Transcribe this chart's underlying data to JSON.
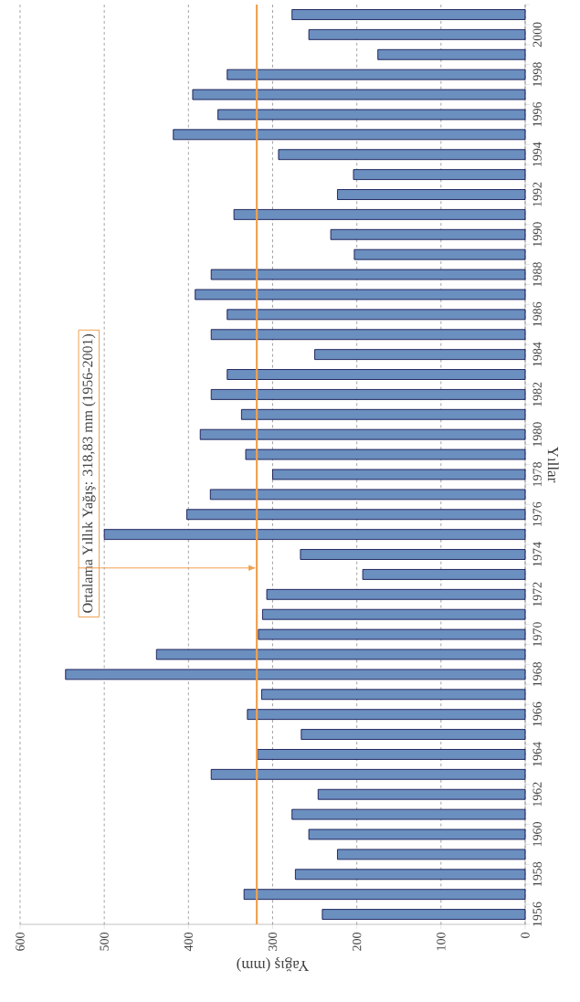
{
  "chart_data": {
    "type": "bar",
    "orientation": "horizontal",
    "xlabel": "Yağış (mm)",
    "ylabel": "Yıllar",
    "categories": [
      null,
      "2000",
      null,
      "1998",
      null,
      "1996",
      null,
      "1994",
      null,
      "1992",
      null,
      "1990",
      null,
      "1988",
      null,
      "1986",
      null,
      "1984",
      null,
      "1982",
      null,
      "1980",
      null,
      "1978",
      null,
      "1976",
      null,
      "1974",
      null,
      "1972",
      null,
      "1970",
      null,
      "1968",
      null,
      "1966",
      null,
      "1964",
      null,
      "1962",
      null,
      "1960",
      null,
      "1958",
      null,
      "1956"
    ],
    "values": [
      277,
      257,
      175,
      354,
      395,
      365,
      418,
      293,
      204,
      223,
      346,
      231,
      203,
      373,
      392,
      354,
      373,
      250,
      354,
      373,
      337,
      386,
      332,
      300,
      374,
      402,
      500,
      267,
      193,
      307,
      312,
      317,
      438,
      546,
      313,
      330,
      266,
      318,
      373,
      246,
      277,
      257,
      223,
      273,
      334,
      241
    ],
    "color": "#6b8fbf",
    "xlim": [
      600,
      0
    ],
    "xticks": [
      0,
      100,
      200,
      300,
      400,
      500,
      600
    ],
    "grid": "x",
    "ref_lines": [
      {
        "axis": "x",
        "value": 318.83,
        "label": "Ortalama Yıllık Yağış: 318,83 mm (1956-2001)",
        "color": "#f0a050"
      }
    ]
  }
}
